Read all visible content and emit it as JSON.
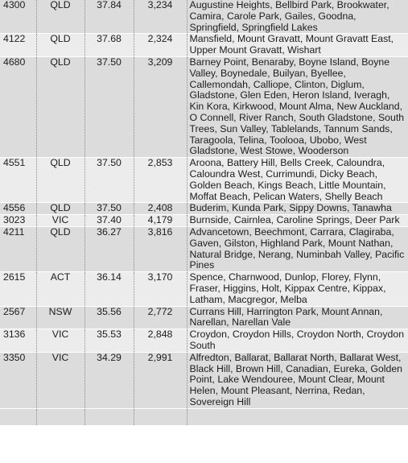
{
  "table": {
    "rows": [
      {
        "postcode": "4300",
        "state": "QLD",
        "percent": "37.84",
        "count": "3,234",
        "suburbs": "Augustine Heights, Bellbird Park, Brookwater, Camira, Carole Park, Gailes, Goodna, Springfield, Springfield Lakes"
      },
      {
        "postcode": "4122",
        "state": "QLD",
        "percent": "37.68",
        "count": "2,324",
        "suburbs": "Mansfield, Mount Gravatt, Mount Gravatt East, Upper Mount Gravatt, Wishart"
      },
      {
        "postcode": "4680",
        "state": "QLD",
        "percent": "37.50",
        "count": "3,209",
        "suburbs": "Barney Point, Benaraby, Boyne Island, Boyne Valley, Boynedale, Builyan, Byellee, Callemondah, Calliope, Clinton, Diglum, Gladstone, Glen Eden, Heron Island, Iveragh, Kin Kora, Kirkwood, Mount Alma, New Auckland, O Connell, River Ranch, South Gladstone, South Trees, Sun Valley, Tablelands, Tannum Sands, Taragoola, Telina, Toolooa, Ubobo, West Gladstone, West Stowe, Wooderson"
      },
      {
        "postcode": "4551",
        "state": "QLD",
        "percent": "37.50",
        "count": "2,853",
        "suburbs": "Aroona, Battery Hill, Bells Creek, Caloundra, Caloundra West, Currimundi, Dicky Beach, Golden Beach, Kings Beach, Little Mountain, Moffat Beach, Pelican Waters, Shelly Beach"
      },
      {
        "postcode": "4556",
        "state": "QLD",
        "percent": "37.50",
        "count": "2,408",
        "suburbs": "Buderim, Kunda Park, Sippy Downs, Tanawha"
      },
      {
        "postcode": "3023",
        "state": "VIC",
        "percent": "37.40",
        "count": "4,179",
        "suburbs": "Burnside, Cairnlea, Caroline Springs, Deer Park"
      },
      {
        "postcode": "4211",
        "state": "QLD",
        "percent": "36.27",
        "count": "3,816",
        "suburbs": "Advancetown, Beechmont, Carrara, Clagiraba, Gaven, Gilston, Highland Park, Mount Nathan, Natural Bridge, Nerang, Numinbah Valley, Pacific Pines"
      },
      {
        "postcode": "2615",
        "state": "ACT",
        "percent": "36.14",
        "count": "3,170",
        "suburbs": "Spence, Charnwood, Dunlop, Florey, Flynn, Fraser, Higgins, Holt, Kippax Centre, Kippax, Latham, Macgregor, Melba"
      },
      {
        "postcode": "2567",
        "state": "NSW",
        "percent": "35.56",
        "count": "2,772",
        "suburbs": "Currans Hill, Harrington Park, Mount Annan, Narellan, Narellan Vale"
      },
      {
        "postcode": "3136",
        "state": "VIC",
        "percent": "35.53",
        "count": "2,848",
        "suburbs": "Croydon, Croydon Hills, Croydon North, Croydon South"
      },
      {
        "postcode": "3350",
        "state": "VIC",
        "percent": "34.29",
        "count": "2,991",
        "suburbs": "Alfredton, Ballarat, Ballarat North, Ballarat West, Black Hill, Brown Hill, Canadian, Eureka, Golden Point, Lake Wendouree, Mount Clear, Mount Helen, Mount Pleasant, Nerrina, Redan, Sovereign Hill"
      }
    ]
  }
}
